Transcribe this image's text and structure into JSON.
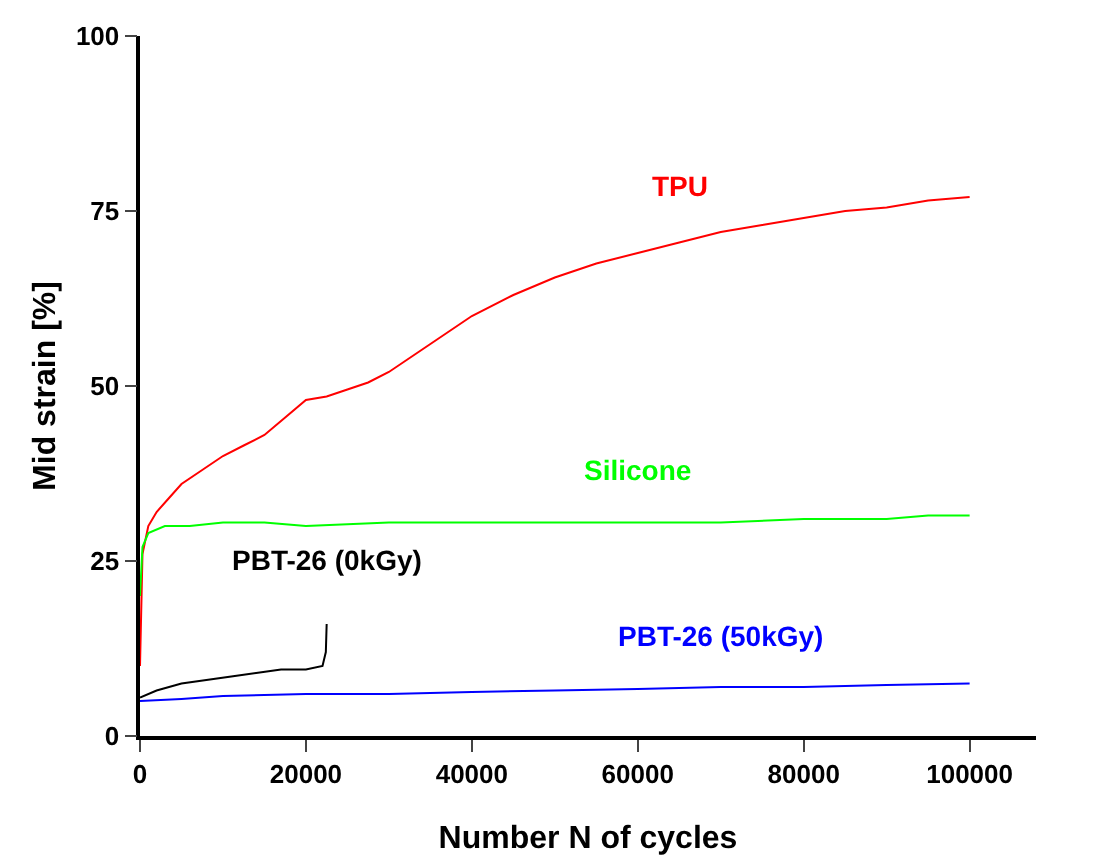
{
  "chart_data": {
    "type": "line",
    "xlabel": "Number N of cycles",
    "ylabel": "Mid strain [%]",
    "xlim": [
      0,
      108000
    ],
    "xticks": [
      0,
      20000,
      40000,
      60000,
      80000,
      100000
    ],
    "ylim": [
      0,
      100
    ],
    "yticks": [
      0,
      25,
      50,
      75,
      100
    ],
    "grid": false,
    "legend": false,
    "marker": "none",
    "line_style": "solid",
    "series": [
      {
        "name": "TPU",
        "color": "#ff0000",
        "x": [
          0,
          300,
          1000,
          2000,
          3500,
          5000,
          7500,
          10000,
          12500,
          15000,
          17500,
          20000,
          22500,
          25000,
          27500,
          30000,
          35000,
          40000,
          45000,
          50000,
          55000,
          60000,
          65000,
          70000,
          75000,
          80000,
          85000,
          90000,
          95000,
          100000
        ],
        "values": [
          10,
          26,
          30,
          32,
          34,
          36,
          38,
          40,
          41.5,
          43,
          45.5,
          48,
          48.5,
          49.5,
          50.5,
          52,
          56,
          60,
          63,
          65.5,
          67.5,
          69,
          70.5,
          72,
          73,
          74,
          75,
          75.5,
          76.5,
          77
        ]
      },
      {
        "name": "Silicone",
        "color": "#00ff00",
        "x": [
          0,
          300,
          1000,
          3000,
          6000,
          10000,
          15000,
          20000,
          30000,
          40000,
          50000,
          60000,
          70000,
          80000,
          90000,
          95000,
          100000
        ],
        "values": [
          20,
          27,
          29,
          30,
          30,
          30.5,
          30.5,
          30,
          30.5,
          30.5,
          30.5,
          30.5,
          30.5,
          31,
          31,
          31.5,
          31.5
        ]
      },
      {
        "name": "PBT-26 (0kGy)",
        "color": "#000000",
        "x": [
          0,
          2000,
          5000,
          8000,
          11000,
          14000,
          17000,
          20000,
          22000,
          22400,
          22500
        ],
        "values": [
          5.5,
          6.5,
          7.5,
          8,
          8.5,
          9,
          9.5,
          9.5,
          10,
          12,
          16
        ]
      },
      {
        "name": "PBT-26 (50kGy)",
        "color": "#0000ff",
        "x": [
          0,
          5000,
          10000,
          20000,
          30000,
          40000,
          50000,
          60000,
          70000,
          80000,
          90000,
          100000
        ],
        "values": [
          5,
          5.3,
          5.7,
          6,
          6,
          6.3,
          6.5,
          6.7,
          7,
          7,
          7.3,
          7.5
        ]
      }
    ]
  }
}
